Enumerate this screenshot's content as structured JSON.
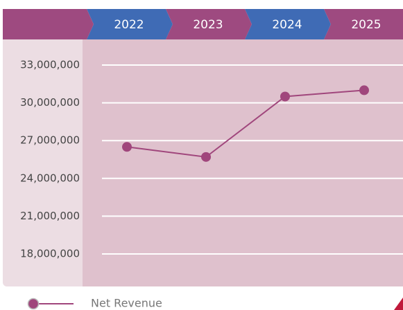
{
  "chart_data": {
    "type": "line",
    "categories": [
      "2022",
      "2023",
      "2024",
      "2025"
    ],
    "series": [
      {
        "name": "Net Revenue",
        "color": "#a0467c",
        "values": [
          26500000,
          25700000,
          30500000,
          31000000
        ]
      }
    ],
    "ylim": [
      16000000,
      34000000
    ],
    "yticks": [
      {
        "value": 18000000,
        "label": "18,000,000"
      },
      {
        "value": 21000000,
        "label": "21,000,000"
      },
      {
        "value": 24000000,
        "label": "24,000,000"
      },
      {
        "value": 27000000,
        "label": "27,000,000"
      },
      {
        "value": 30000000,
        "label": "30,000,000"
      },
      {
        "value": 33000000,
        "label": "33,000,000"
      }
    ],
    "grid": true,
    "header_colors": [
      "#9e4a80",
      "#3f6bb5"
    ]
  }
}
